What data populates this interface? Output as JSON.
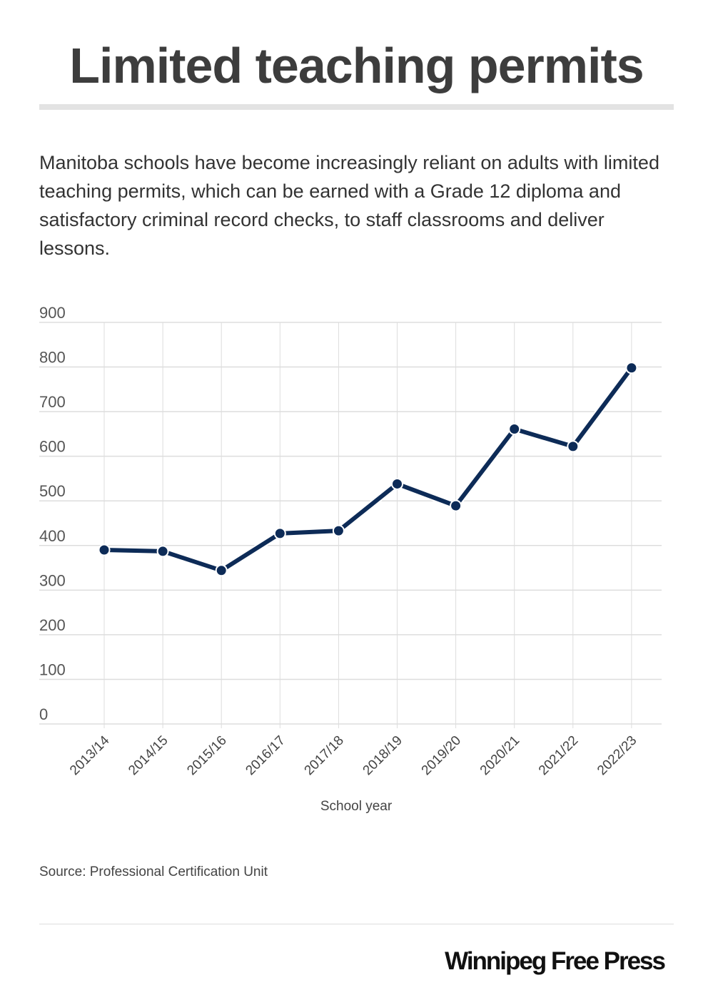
{
  "title": "Limited teaching permits",
  "subtitle": "Manitoba schools have become increasingly reliant on adults with limited teaching permits, which can be earned with a Grade 12 diploma and satisfactory criminal record checks, to staff classrooms and deliver lessons.",
  "source": "Source: Professional Certification Unit",
  "logo": "Winnipeg Free Press",
  "colors": {
    "line": "#0d2b57",
    "grid": "#dddddd"
  },
  "chart_data": {
    "type": "line",
    "title": "Limited teaching permits",
    "xlabel": "School year",
    "ylabel": "",
    "categories": [
      "2013/14",
      "2014/15",
      "2015/16",
      "2016/17",
      "2017/18",
      "2018/19",
      "2019/20",
      "2020/21",
      "2021/22",
      "2022/23"
    ],
    "values": [
      390,
      387,
      344,
      427,
      433,
      538,
      489,
      661,
      622,
      798
    ],
    "ylim": [
      0,
      900
    ],
    "yticks": [
      0,
      100,
      200,
      300,
      400,
      500,
      600,
      700,
      800,
      900
    ],
    "grid": true,
    "legend": "none"
  }
}
